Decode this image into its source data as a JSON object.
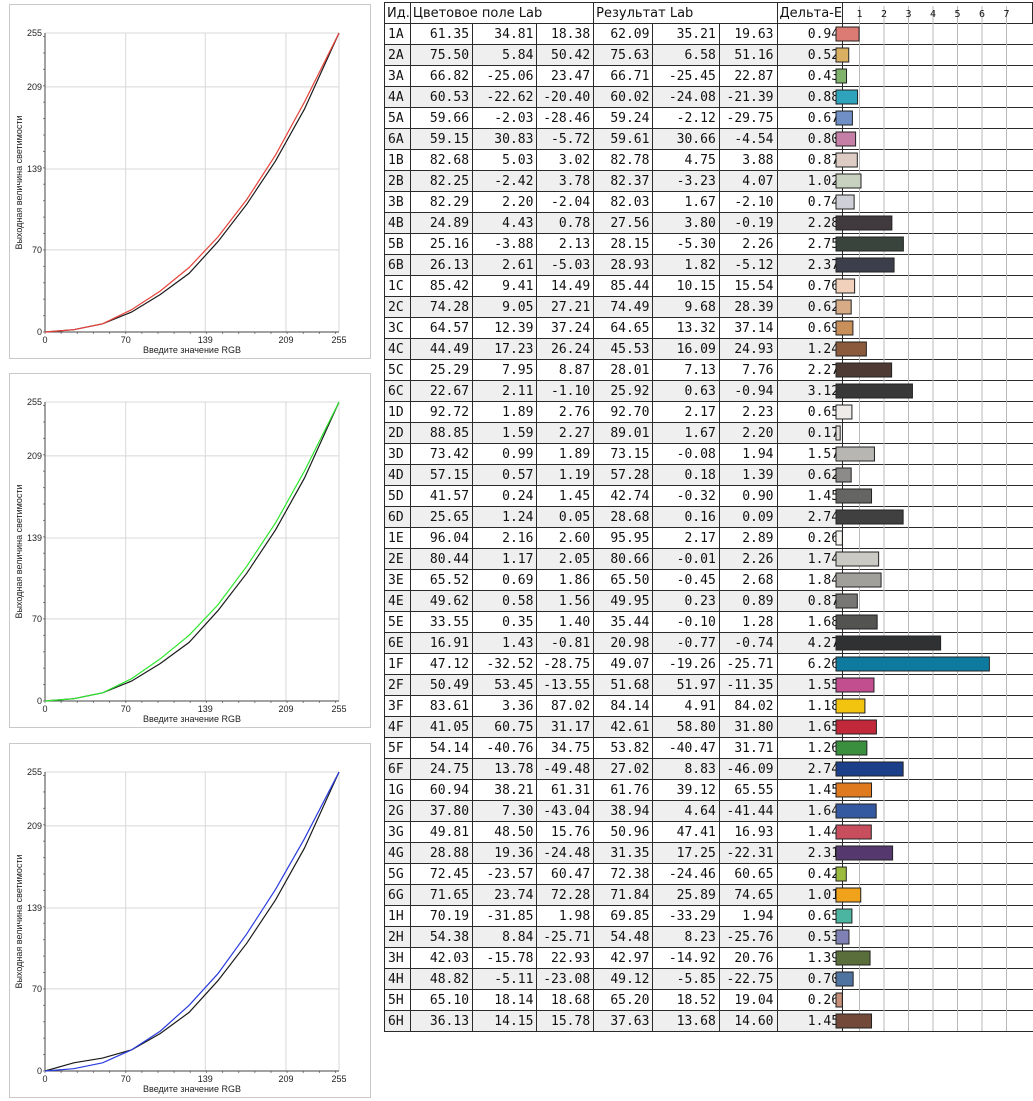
{
  "colors": {
    "red": "#e8433a",
    "green": "#2ee82e",
    "blue": "#2a3ce0",
    "ref": "#1a1a1a"
  },
  "chart_data": [
    {
      "type": "line",
      "xlabel": "Введите значение RGB",
      "ylabel": "Выходная величина светимости",
      "xlim": [
        0,
        255
      ],
      "ylim": [
        0,
        255
      ],
      "xticks": [
        0,
        70,
        139,
        209,
        255
      ],
      "yticks": [
        0,
        70,
        139,
        209,
        255
      ],
      "grid": true,
      "series": [
        {
          "color": "#1a1a1a",
          "x": [
            0,
            25,
            50,
            75,
            100,
            125,
            150,
            175,
            200,
            225,
            255
          ],
          "y": [
            0,
            2,
            7,
            17,
            32,
            50,
            77,
            109,
            146,
            190,
            255
          ]
        },
        {
          "color": "#e8433a",
          "x": [
            0,
            25,
            50,
            75,
            100,
            125,
            150,
            175,
            200,
            225,
            255
          ],
          "y": [
            0,
            2,
            7,
            19,
            35,
            55,
            81,
            113,
            151,
            196,
            255
          ]
        }
      ]
    },
    {
      "type": "line",
      "xlabel": "Введите значение RGB",
      "ylabel": "Выходная величина светимости",
      "xlim": [
        0,
        255
      ],
      "ylim": [
        0,
        255
      ],
      "xticks": [
        0,
        70,
        139,
        209,
        255
      ],
      "yticks": [
        0,
        70,
        139,
        209,
        255
      ],
      "grid": true,
      "series": [
        {
          "color": "#1a1a1a",
          "x": [
            0,
            25,
            50,
            75,
            100,
            125,
            150,
            175,
            200,
            225,
            255
          ],
          "y": [
            0,
            2,
            7,
            17,
            32,
            50,
            77,
            109,
            146,
            190,
            255
          ]
        },
        {
          "color": "#2ee82e",
          "x": [
            0,
            25,
            50,
            75,
            100,
            125,
            150,
            175,
            200,
            225,
            255
          ],
          "y": [
            0,
            2,
            7,
            19,
            36,
            56,
            82,
            115,
            152,
            196,
            255
          ]
        }
      ]
    },
    {
      "type": "line",
      "xlabel": "Введите значение RGB",
      "ylabel": "Выходная величина светимости",
      "xlim": [
        0,
        255
      ],
      "ylim": [
        0,
        255
      ],
      "xticks": [
        0,
        70,
        139,
        209,
        255
      ],
      "yticks": [
        0,
        70,
        139,
        209,
        255
      ],
      "grid": true,
      "series": [
        {
          "color": "#1a1a1a",
          "x": [
            0,
            25,
            50,
            75,
            100,
            125,
            150,
            175,
            200,
            225,
            255
          ],
          "y": [
            0,
            7,
            11,
            18,
            32,
            50,
            77,
            109,
            146,
            190,
            255
          ]
        },
        {
          "color": "#2a3ce0",
          "x": [
            0,
            25,
            50,
            75,
            100,
            125,
            150,
            175,
            200,
            225,
            255
          ],
          "y": [
            0,
            2,
            7,
            18,
            34,
            56,
            83,
            117,
            155,
            198,
            255
          ]
        }
      ]
    },
    {
      "type": "table",
      "headers": {
        "id": "Ид.",
        "field": "Цветовое поле Lab",
        "result": "Результат Lab",
        "delta": "Дельта-E"
      },
      "scale_ticks": [
        "1",
        "2",
        "3",
        "4",
        "5",
        "6",
        "7"
      ],
      "scale_max": 7,
      "rows": [
        {
          "id": "1A",
          "l1": "61.35",
          "a1": "34.81",
          "b1": "18.38",
          "l2": "62.09",
          "a2": "35.21",
          "b2": "19.63",
          "de": "0.94",
          "color": "#db7b74"
        },
        {
          "id": "2A",
          "l1": "75.50",
          "a1": "5.84",
          "b1": "50.42",
          "l2": "75.63",
          "a2": "6.58",
          "b2": "51.16",
          "de": "0.52",
          "color": "#d9b062"
        },
        {
          "id": "3A",
          "l1": "66.82",
          "a1": "-25.06",
          "b1": "23.47",
          "l2": "66.71",
          "a2": "-25.45",
          "b2": "22.87",
          "de": "0.43",
          "color": "#7fb26a"
        },
        {
          "id": "4A",
          "l1": "60.53",
          "a1": "-22.62",
          "b1": "-20.40",
          "l2": "60.02",
          "a2": "-24.08",
          "b2": "-21.39",
          "de": "0.88",
          "color": "#2ea3bb"
        },
        {
          "id": "5A",
          "l1": "59.66",
          "a1": "-2.03",
          "b1": "-28.46",
          "l2": "59.24",
          "a2": "-2.12",
          "b2": "-29.75",
          "de": "0.67",
          "color": "#6f8fc6"
        },
        {
          "id": "6A",
          "l1": "59.15",
          "a1": "30.83",
          "b1": "-5.72",
          "l2": "59.61",
          "a2": "30.66",
          "b2": "-4.54",
          "de": "0.80",
          "color": "#c57fa6"
        },
        {
          "id": "1B",
          "l1": "82.68",
          "a1": "5.03",
          "b1": "3.02",
          "l2": "82.78",
          "a2": "4.75",
          "b2": "3.88",
          "de": "0.87",
          "color": "#dcccc4"
        },
        {
          "id": "2B",
          "l1": "82.25",
          "a1": "-2.42",
          "b1": "3.78",
          "l2": "82.37",
          "a2": "-3.23",
          "b2": "4.07",
          "de": "1.02",
          "color": "#c8d1c0"
        },
        {
          "id": "3B",
          "l1": "82.29",
          "a1": "2.20",
          "b1": "-2.04",
          "l2": "82.03",
          "a2": "1.67",
          "b2": "-2.10",
          "de": "0.74",
          "color": "#cfcfd8"
        },
        {
          "id": "4B",
          "l1": "24.89",
          "a1": "4.43",
          "b1": "0.78",
          "l2": "27.56",
          "a2": "3.80",
          "b2": "-0.19",
          "de": "2.28",
          "color": "#403a3e"
        },
        {
          "id": "5B",
          "l1": "25.16",
          "a1": "-3.88",
          "b1": "2.13",
          "l2": "28.15",
          "a2": "-5.30",
          "b2": "2.26",
          "de": "2.75",
          "color": "#39443c"
        },
        {
          "id": "6B",
          "l1": "26.13",
          "a1": "2.61",
          "b1": "-5.03",
          "l2": "28.93",
          "a2": "1.82",
          "b2": "-5.12",
          "de": "2.37",
          "color": "#3d3e4c"
        },
        {
          "id": "1C",
          "l1": "85.42",
          "a1": "9.41",
          "b1": "14.49",
          "l2": "85.44",
          "a2": "10.15",
          "b2": "15.54",
          "de": "0.76",
          "color": "#f1d1bb"
        },
        {
          "id": "2C",
          "l1": "74.28",
          "a1": "9.05",
          "b1": "27.21",
          "l2": "74.49",
          "a2": "9.68",
          "b2": "28.39",
          "de": "0.62",
          "color": "#d7ab86"
        },
        {
          "id": "3C",
          "l1": "64.57",
          "a1": "12.39",
          "b1": "37.24",
          "l2": "64.65",
          "a2": "13.32",
          "b2": "37.14",
          "de": "0.69",
          "color": "#c98f5a"
        },
        {
          "id": "4C",
          "l1": "44.49",
          "a1": "17.23",
          "b1": "26.24",
          "l2": "45.53",
          "a2": "16.09",
          "b2": "24.93",
          "de": "1.24",
          "color": "#8b5a3c"
        },
        {
          "id": "5C",
          "l1": "25.29",
          "a1": "7.95",
          "b1": "8.87",
          "l2": "28.01",
          "a2": "7.13",
          "b2": "7.76",
          "de": "2.27",
          "color": "#4d3a33"
        },
        {
          "id": "6C",
          "l1": "22.67",
          "a1": "2.11",
          "b1": "-1.10",
          "l2": "25.92",
          "a2": "0.63",
          "b2": "-0.94",
          "de": "3.12",
          "color": "#383838"
        },
        {
          "id": "1D",
          "l1": "92.72",
          "a1": "1.89",
          "b1": "2.76",
          "l2": "92.70",
          "a2": "2.17",
          "b2": "2.23",
          "de": "0.65",
          "color": "#efebe8"
        },
        {
          "id": "2D",
          "l1": "88.85",
          "a1": "1.59",
          "b1": "2.27",
          "l2": "89.01",
          "a2": "1.67",
          "b2": "2.20",
          "de": "0.17",
          "color": "#e2dfdc"
        },
        {
          "id": "3D",
          "l1": "73.42",
          "a1": "0.99",
          "b1": "1.89",
          "l2": "73.15",
          "a2": "-0.08",
          "b2": "1.94",
          "de": "1.57",
          "color": "#b7b6b2"
        },
        {
          "id": "4D",
          "l1": "57.15",
          "a1": "0.57",
          "b1": "1.19",
          "l2": "57.28",
          "a2": "0.18",
          "b2": "1.39",
          "de": "0.62",
          "color": "#8c8b89"
        },
        {
          "id": "5D",
          "l1": "41.57",
          "a1": "0.24",
          "b1": "1.45",
          "l2": "42.74",
          "a2": "-0.32",
          "b2": "0.90",
          "de": "1.45",
          "color": "#656563"
        },
        {
          "id": "6D",
          "l1": "25.65",
          "a1": "1.24",
          "b1": "0.05",
          "l2": "28.68",
          "a2": "0.16",
          "b2": "0.09",
          "de": "2.74",
          "color": "#404040"
        },
        {
          "id": "1E",
          "l1": "96.04",
          "a1": "2.16",
          "b1": "2.60",
          "l2": "95.95",
          "a2": "2.17",
          "b2": "2.89",
          "de": "0.26",
          "color": "#f6f4f1"
        },
        {
          "id": "2E",
          "l1": "80.44",
          "a1": "1.17",
          "b1": "2.05",
          "l2": "80.66",
          "a2": "-0.01",
          "b2": "2.26",
          "de": "1.74",
          "color": "#cbc9c4"
        },
        {
          "id": "3E",
          "l1": "65.52",
          "a1": "0.69",
          "b1": "1.86",
          "l2": "65.50",
          "a2": "-0.45",
          "b2": "2.68",
          "de": "1.84",
          "color": "#a19f9a"
        },
        {
          "id": "4E",
          "l1": "49.62",
          "a1": "0.58",
          "b1": "1.56",
          "l2": "49.95",
          "a2": "0.23",
          "b2": "0.89",
          "de": "0.87",
          "color": "#777674"
        },
        {
          "id": "5E",
          "l1": "33.55",
          "a1": "0.35",
          "b1": "1.40",
          "l2": "35.44",
          "a2": "-0.10",
          "b2": "1.28",
          "de": "1.68",
          "color": "#535352"
        },
        {
          "id": "6E",
          "l1": "16.91",
          "a1": "1.43",
          "b1": "-0.81",
          "l2": "20.98",
          "a2": "-0.77",
          "b2": "-0.74",
          "de": "4.27",
          "color": "#303133"
        },
        {
          "id": "1F",
          "l1": "47.12",
          "a1": "-32.52",
          "b1": "-28.75",
          "l2": "49.07",
          "a2": "-19.26",
          "b2": "-25.71",
          "de": "6.26",
          "color": "#0f7aa0"
        },
        {
          "id": "2F",
          "l1": "50.49",
          "a1": "53.45",
          "b1": "-13.55",
          "l2": "51.68",
          "a2": "51.97",
          "b2": "-11.35",
          "de": "1.55",
          "color": "#c24d8f"
        },
        {
          "id": "3F",
          "l1": "83.61",
          "a1": "3.36",
          "b1": "87.02",
          "l2": "84.14",
          "a2": "4.91",
          "b2": "84.02",
          "de": "1.18",
          "color": "#f2c40f"
        },
        {
          "id": "4F",
          "l1": "41.05",
          "a1": "60.75",
          "b1": "31.17",
          "l2": "42.61",
          "a2": "58.80",
          "b2": "31.80",
          "de": "1.65",
          "color": "#c1283a"
        },
        {
          "id": "5F",
          "l1": "54.14",
          "a1": "-40.76",
          "b1": "34.75",
          "l2": "53.82",
          "a2": "-40.47",
          "b2": "31.71",
          "de": "1.26",
          "color": "#3a8f3e"
        },
        {
          "id": "6F",
          "l1": "24.75",
          "a1": "13.78",
          "b1": "-49.48",
          "l2": "27.02",
          "a2": "8.83",
          "b2": "-46.09",
          "de": "2.74",
          "color": "#1c3f8a"
        },
        {
          "id": "1G",
          "l1": "60.94",
          "a1": "38.21",
          "b1": "61.31",
          "l2": "61.76",
          "a2": "39.12",
          "b2": "65.55",
          "de": "1.45",
          "color": "#e07a1f"
        },
        {
          "id": "2G",
          "l1": "37.80",
          "a1": "7.30",
          "b1": "-43.04",
          "l2": "38.94",
          "a2": "4.64",
          "b2": "-41.44",
          "de": "1.64",
          "color": "#3559a0"
        },
        {
          "id": "3G",
          "l1": "49.81",
          "a1": "48.50",
          "b1": "15.76",
          "l2": "50.96",
          "a2": "47.41",
          "b2": "16.93",
          "de": "1.44",
          "color": "#c84e5e"
        },
        {
          "id": "4G",
          "l1": "28.88",
          "a1": "19.36",
          "b1": "-24.48",
          "l2": "31.35",
          "a2": "17.25",
          "b2": "-22.31",
          "de": "2.31",
          "color": "#55386e"
        },
        {
          "id": "5G",
          "l1": "72.45",
          "a1": "-23.57",
          "b1": "60.47",
          "l2": "72.38",
          "a2": "-24.46",
          "b2": "60.65",
          "de": "0.42",
          "color": "#9bbb3e"
        },
        {
          "id": "6G",
          "l1": "71.65",
          "a1": "23.74",
          "b1": "72.28",
          "l2": "71.84",
          "a2": "25.89",
          "b2": "74.65",
          "de": "1.01",
          "color": "#efa21a"
        },
        {
          "id": "1H",
          "l1": "70.19",
          "a1": "-31.85",
          "b1": "1.98",
          "l2": "69.85",
          "a2": "-33.29",
          "b2": "1.94",
          "de": "0.65",
          "color": "#4bb5a2"
        },
        {
          "id": "2H",
          "l1": "54.38",
          "a1": "8.84",
          "b1": "-25.71",
          "l2": "54.48",
          "a2": "8.23",
          "b2": "-25.76",
          "de": "0.53",
          "color": "#7f80b4"
        },
        {
          "id": "3H",
          "l1": "42.03",
          "a1": "-15.78",
          "b1": "22.93",
          "l2": "42.97",
          "a2": "-14.92",
          "b2": "20.76",
          "de": "1.39",
          "color": "#5a6e3b"
        },
        {
          "id": "4H",
          "l1": "48.82",
          "a1": "-5.11",
          "b1": "-23.08",
          "l2": "49.12",
          "a2": "-5.85",
          "b2": "-22.75",
          "de": "0.70",
          "color": "#4f73a0"
        },
        {
          "id": "5H",
          "l1": "65.10",
          "a1": "18.14",
          "b1": "18.68",
          "l2": "65.20",
          "a2": "18.52",
          "b2": "19.04",
          "de": "0.26",
          "color": "#c58f78"
        },
        {
          "id": "6H",
          "l1": "36.13",
          "a1": "14.15",
          "b1": "15.78",
          "l2": "37.63",
          "a2": "13.68",
          "b2": "14.60",
          "de": "1.45",
          "color": "#734a39"
        }
      ]
    }
  ]
}
